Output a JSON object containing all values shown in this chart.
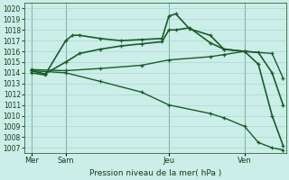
{
  "xlabel": "Pression niveau de la mer( hPa )",
  "bg_color": "#cceee8",
  "grid_color": "#a8d8d0",
  "line_color": "#1a5c2a",
  "ylim": [
    1006.5,
    1020.5
  ],
  "yticks": [
    1007,
    1008,
    1009,
    1010,
    1011,
    1012,
    1013,
    1014,
    1015,
    1016,
    1017,
    1018,
    1019,
    1020
  ],
  "day_labels": [
    "Mer",
    "Sam",
    "Jeu",
    "Ven"
  ],
  "day_positions": [
    0.5,
    3.0,
    10.5,
    16.0
  ],
  "xlim": [
    0,
    19
  ],
  "lines": [
    {
      "x": [
        0.5,
        1.5,
        3.0,
        3.5,
        4.0,
        5.5,
        7.0,
        8.5,
        10.0,
        10.5,
        11.0,
        12.0,
        13.5,
        14.5,
        16.0,
        17.0,
        18.0,
        18.8
      ],
      "y": [
        1014.0,
        1013.8,
        1017.0,
        1017.5,
        1017.5,
        1017.2,
        1017.0,
        1017.1,
        1017.2,
        1019.3,
        1019.5,
        1018.1,
        1017.5,
        1016.2,
        1016.0,
        1014.8,
        1010.0,
        1007.2
      ],
      "marker": "+",
      "lw": 1.2
    },
    {
      "x": [
        0.5,
        1.5,
        3.0,
        4.0,
        5.5,
        7.0,
        8.5,
        10.0,
        10.5,
        11.0,
        12.0,
        13.5,
        14.5,
        16.0,
        17.0,
        18.0,
        18.8
      ],
      "y": [
        1014.2,
        1013.9,
        1015.0,
        1015.8,
        1016.2,
        1016.5,
        1016.7,
        1016.9,
        1018.0,
        1018.0,
        1018.2,
        1016.8,
        1016.2,
        1016.0,
        1015.9,
        1014.0,
        1011.0
      ],
      "marker": "+",
      "lw": 1.2
    },
    {
      "x": [
        0.5,
        3.0,
        5.5,
        8.5,
        10.5,
        13.5,
        14.5,
        16.0,
        18.0,
        18.8
      ],
      "y": [
        1014.3,
        1014.2,
        1014.4,
        1014.7,
        1015.2,
        1015.5,
        1015.7,
        1016.0,
        1015.8,
        1013.5
      ],
      "marker": "+",
      "lw": 1.0
    },
    {
      "x": [
        0.5,
        3.0,
        5.5,
        8.5,
        10.5,
        13.5,
        14.5,
        16.0,
        17.0,
        18.0,
        18.8
      ],
      "y": [
        1014.2,
        1014.0,
        1013.2,
        1012.2,
        1011.0,
        1010.2,
        1009.8,
        1009.0,
        1007.5,
        1007.0,
        1006.8
      ],
      "marker": "+",
      "lw": 1.0
    }
  ]
}
